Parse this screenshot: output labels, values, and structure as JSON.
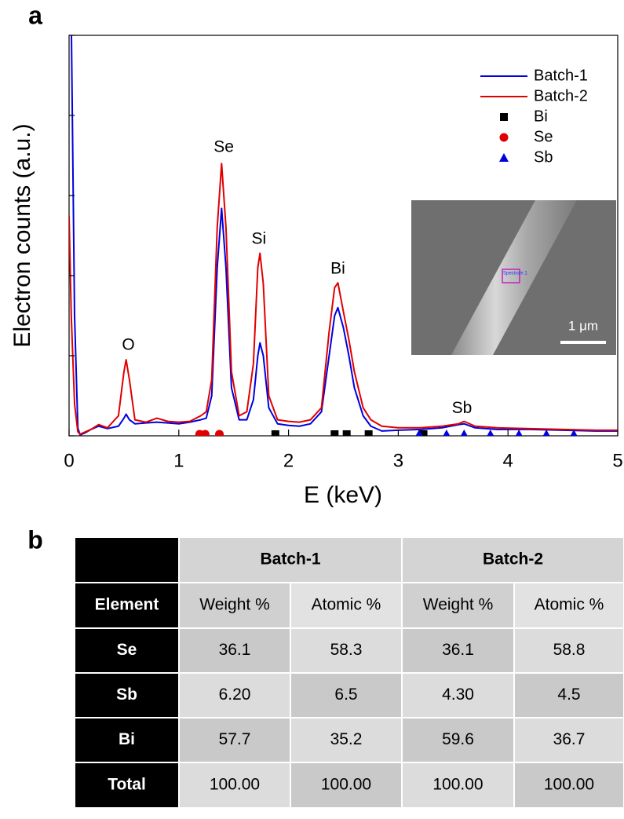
{
  "panels": [
    "a",
    "b"
  ],
  "chart_data": {
    "type": "line",
    "xlabel": "E (keV)",
    "ylabel": "Electron counts (a.u.)",
    "xlim": [
      0,
      5
    ],
    "xticks": [
      0,
      1,
      2,
      3,
      4,
      5
    ],
    "ylim": [
      0,
      5
    ],
    "yticks": [
      0,
      1,
      2,
      3,
      4,
      5
    ],
    "legend": "upper right",
    "x": [
      0,
      0.02,
      0.05,
      0.08,
      0.1,
      0.15,
      0.2,
      0.27,
      0.35,
      0.45,
      0.5,
      0.52,
      0.55,
      0.6,
      0.7,
      0.8,
      0.9,
      1.0,
      1.1,
      1.2,
      1.25,
      1.3,
      1.35,
      1.39,
      1.43,
      1.48,
      1.55,
      1.62,
      1.68,
      1.72,
      1.74,
      1.77,
      1.82,
      1.9,
      2.0,
      2.1,
      2.2,
      2.3,
      2.37,
      2.42,
      2.45,
      2.5,
      2.55,
      2.6,
      2.68,
      2.75,
      2.85,
      3.0,
      3.2,
      3.4,
      3.55,
      3.6,
      3.7,
      3.9,
      4.2,
      4.5,
      4.8,
      5.0
    ],
    "series": [
      {
        "name": "Batch-1",
        "type": "line",
        "color": "#0000e0",
        "values": [
          5.5,
          5.2,
          1.5,
          0.1,
          0.01,
          0.04,
          0.08,
          0.12,
          0.09,
          0.12,
          0.22,
          0.27,
          0.2,
          0.15,
          0.16,
          0.17,
          0.16,
          0.15,
          0.17,
          0.2,
          0.22,
          0.5,
          2.1,
          2.84,
          2.1,
          0.6,
          0.2,
          0.2,
          0.45,
          1.0,
          1.16,
          1.0,
          0.35,
          0.15,
          0.13,
          0.12,
          0.15,
          0.3,
          1.0,
          1.5,
          1.6,
          1.35,
          1.0,
          0.6,
          0.25,
          0.12,
          0.06,
          0.07,
          0.08,
          0.1,
          0.14,
          0.15,
          0.1,
          0.08,
          0.08,
          0.07,
          0.06,
          0.06
        ]
      },
      {
        "name": "Batch-2",
        "type": "line",
        "color": "#e00000",
        "values": [
          2.75,
          1.5,
          0.4,
          0.05,
          0.02,
          0.05,
          0.08,
          0.14,
          0.1,
          0.25,
          0.8,
          0.95,
          0.7,
          0.2,
          0.17,
          0.22,
          0.18,
          0.17,
          0.18,
          0.25,
          0.3,
          0.7,
          2.6,
          3.4,
          2.6,
          0.8,
          0.25,
          0.3,
          0.9,
          2.1,
          2.28,
          1.9,
          0.5,
          0.2,
          0.18,
          0.17,
          0.2,
          0.35,
          1.3,
          1.85,
          1.91,
          1.55,
          1.2,
          0.8,
          0.35,
          0.2,
          0.12,
          0.1,
          0.1,
          0.12,
          0.15,
          0.18,
          0.12,
          0.1,
          0.09,
          0.08,
          0.07,
          0.07
        ]
      },
      {
        "name": "Bi",
        "type": "scatter",
        "marker": "square",
        "color": "#000000",
        "x": [
          1.88,
          2.42,
          2.53,
          2.73,
          3.23
        ],
        "values": [
          0.02,
          0.02,
          0.02,
          0.02,
          0.02
        ]
      },
      {
        "name": "Se",
        "type": "scatter",
        "marker": "circle",
        "color": "#e00000",
        "x": [
          1.19,
          1.24,
          1.37
        ],
        "values": [
          0.02,
          0.02,
          0.02
        ]
      },
      {
        "name": "Sb",
        "type": "scatter",
        "marker": "triangle",
        "color": "#0000e0",
        "x": [
          3.19,
          3.44,
          3.6,
          3.84,
          4.1,
          4.35,
          4.6
        ],
        "values": [
          0.02,
          0.02,
          0.02,
          0.02,
          0.02,
          0.02,
          0.02
        ]
      }
    ],
    "annotations": [
      {
        "text": "O",
        "x": 0.54,
        "y": 1.13
      },
      {
        "text": "Se",
        "x": 1.41,
        "y": 3.6
      },
      {
        "text": "Si",
        "x": 1.73,
        "y": 2.45
      },
      {
        "text": "Bi",
        "x": 2.45,
        "y": 2.08
      },
      {
        "text": "Sb",
        "x": 3.58,
        "y": 0.34
      }
    ],
    "inset": {
      "spectrum_label": "Spectrum 1",
      "scale_label": "1 μm"
    }
  },
  "table": {
    "groups": [
      "Batch-1",
      "Batch-2"
    ],
    "columns": [
      "Element",
      "Weight %",
      "Atomic %",
      "Weight %",
      "Atomic %"
    ],
    "rows": [
      [
        "Se",
        "36.1",
        "58.3",
        "36.1",
        "58.8"
      ],
      [
        "Sb",
        "6.20",
        "6.5",
        "4.30",
        "4.5"
      ],
      [
        "Bi",
        "57.7",
        "35.2",
        "59.6",
        "36.7"
      ],
      [
        "Total",
        "100.00",
        "100.00",
        "100.00",
        "100.00"
      ]
    ]
  }
}
